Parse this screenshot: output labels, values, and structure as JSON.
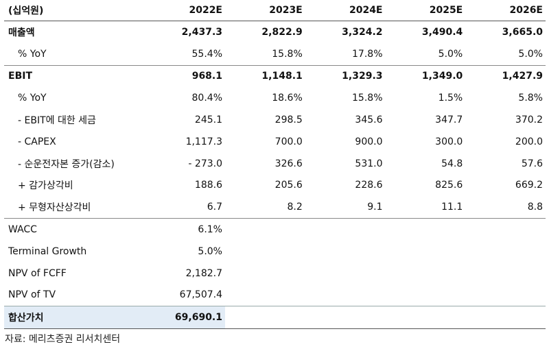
{
  "header": {
    "unit_label": "(십억원)",
    "years": [
      "2022E",
      "2023E",
      "2024E",
      "2025E",
      "2026E"
    ]
  },
  "rows": [
    {
      "label": "매출액",
      "values": [
        "2,437.3",
        "2,822.9",
        "3,324.2",
        "3,490.4",
        "3,665.0"
      ]
    },
    {
      "label": "% YoY",
      "values": [
        "55.4%",
        "15.8%",
        "17.8%",
        "5.0%",
        "5.0%"
      ]
    },
    {
      "label": "EBIT",
      "values": [
        "968.1",
        "1,148.1",
        "1,329.3",
        "1,349.0",
        "1,427.9"
      ]
    },
    {
      "label": "% YoY",
      "values": [
        "80.4%",
        "18.6%",
        "15.8%",
        "1.5%",
        "5.8%"
      ]
    },
    {
      "label": "- EBIT에 대한 세금",
      "values": [
        "245.1",
        "298.5",
        "345.6",
        "347.7",
        "370.2"
      ]
    },
    {
      "label": "- CAPEX",
      "values": [
        "1,117.3",
        "700.0",
        "900.0",
        "300.0",
        "200.0"
      ]
    },
    {
      "label": "- 순운전자본 증가(감소)",
      "values": [
        "- 273.0",
        "326.6",
        "531.0",
        "54.8",
        "57.6"
      ]
    },
    {
      "label": "+ 감가상각비",
      "values": [
        "188.6",
        "205.6",
        "228.6",
        "825.6",
        "669.2"
      ]
    },
    {
      "label": "+ 무형자산상각비",
      "values": [
        "6.7",
        "8.2",
        "9.1",
        "11.1",
        "8.8"
      ]
    }
  ],
  "summary": [
    {
      "label": "WACC",
      "value": "6.1%"
    },
    {
      "label": "Terminal Growth",
      "value": "5.0%"
    },
    {
      "label": "NPV of FCFF",
      "value": "2,182.7"
    },
    {
      "label": "NPV of TV",
      "value": "67,507.4"
    }
  ],
  "total": {
    "label": "합산가치",
    "value": "69,690.1"
  },
  "source": "자료: 메리츠증권 리서치센터",
  "colors": {
    "highlight": "#e2ecf6"
  }
}
